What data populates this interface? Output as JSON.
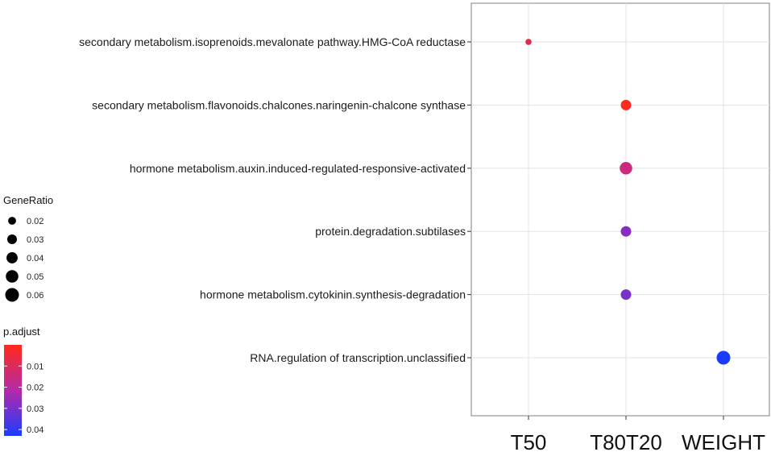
{
  "chart_data": {
    "type": "scatter",
    "x_categories": [
      "T50",
      "T80T20",
      "WEIGHT"
    ],
    "y_categories": [
      "secondary metabolism.isoprenoids.mevalonate pathway.HMG-CoA reductase",
      "secondary metabolism.flavonoids.chalcones.naringenin-chalcone synthase",
      "hormone metabolism.auxin.induced-regulated-responsive-activated",
      "protein.degradation.subtilases",
      "hormone metabolism.cytokinin.synthesis-degradation",
      "RNA.regulation of transcription.unclassified"
    ],
    "points": [
      {
        "x": "T50",
        "y": "secondary metabolism.isoprenoids.mevalonate pathway.HMG-CoA reductase",
        "gene_ratio": 0.012,
        "p_adjust": 0.008
      },
      {
        "x": "T80T20",
        "y": "secondary metabolism.flavonoids.chalcones.naringenin-chalcone synthase",
        "gene_ratio": 0.035,
        "p_adjust": 0.001
      },
      {
        "x": "T80T20",
        "y": "hormone metabolism.auxin.induced-regulated-responsive-activated",
        "gene_ratio": 0.05,
        "p_adjust": 0.015
      },
      {
        "x": "T80T20",
        "y": "protein.degradation.subtilases",
        "gene_ratio": 0.035,
        "p_adjust": 0.028
      },
      {
        "x": "T80T20",
        "y": "hormone metabolism.cytokinin.synthesis-degradation",
        "gene_ratio": 0.035,
        "p_adjust": 0.03
      },
      {
        "x": "WEIGHT",
        "y": "RNA.regulation of transcription.unclassified",
        "gene_ratio": 0.06,
        "p_adjust": 0.043
      }
    ],
    "size_legend": {
      "title": "GeneRatio",
      "breaks": [
        0.02,
        0.03,
        0.04,
        0.05,
        0.06
      ],
      "labels": [
        "0.02",
        "0.03",
        "0.04",
        "0.05",
        "0.06"
      ]
    },
    "color_legend": {
      "title": "p.adjust",
      "breaks": [
        0.01,
        0.02,
        0.03,
        0.04
      ],
      "labels": [
        "0.01",
        "0.02",
        "0.03",
        "0.04"
      ],
      "range": [
        0.0,
        0.043
      ],
      "low_color": "#ff2a1a",
      "high_color": "#1a3cff"
    },
    "grid": true,
    "legend_position": "left"
  }
}
